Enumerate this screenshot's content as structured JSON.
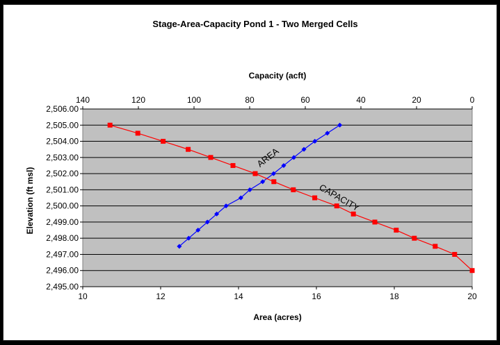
{
  "chart_data": {
    "type": "line",
    "title": "Stage-Area-Capacity Pond 1 - Two Merged Cells",
    "xlabel": "Area (acres)",
    "x2label": "Capacity (acft)",
    "ylabel": "Elevation (ft msl)",
    "xlim": [
      10,
      20
    ],
    "x2lim": [
      140,
      0
    ],
    "ylim": [
      2495,
      2506
    ],
    "xticks": [
      10,
      12,
      14,
      16,
      18,
      20
    ],
    "x2ticks": [
      140,
      120,
      100,
      80,
      60,
      40,
      20,
      0
    ],
    "yticks": [
      "2,495.00",
      "2,496.00",
      "2,497.00",
      "2,498.00",
      "2,499.00",
      "2,500.00",
      "2,501.00",
      "2,502.00",
      "2,503.00",
      "2,504.00",
      "2,505.00",
      "2,506.00"
    ],
    "grid": true,
    "plot_background": "#c0c0c0",
    "series": [
      {
        "name": "AREA",
        "axis": "bottom",
        "color": "#0000ff",
        "marker": "diamond",
        "points": [
          {
            "x": 12.48,
            "y": 2497.5
          },
          {
            "x": 12.72,
            "y": 2498.0
          },
          {
            "x": 12.96,
            "y": 2498.5
          },
          {
            "x": 13.2,
            "y": 2499.0
          },
          {
            "x": 13.44,
            "y": 2499.5
          },
          {
            "x": 13.68,
            "y": 2500.0
          },
          {
            "x": 14.06,
            "y": 2500.5
          },
          {
            "x": 14.29,
            "y": 2501.0
          },
          {
            "x": 14.62,
            "y": 2501.5
          },
          {
            "x": 14.9,
            "y": 2502.0
          },
          {
            "x": 15.16,
            "y": 2502.5
          },
          {
            "x": 15.42,
            "y": 2503.0
          },
          {
            "x": 15.68,
            "y": 2503.5
          },
          {
            "x": 15.96,
            "y": 2504.0
          },
          {
            "x": 16.28,
            "y": 2504.5
          },
          {
            "x": 16.6,
            "y": 2505.0
          }
        ]
      },
      {
        "name": "CAPACITY",
        "axis": "top",
        "color": "#ff0000",
        "marker": "square",
        "points": [
          {
            "x": 130.2,
            "y": 2505.0
          },
          {
            "x": 120.2,
            "y": 2504.5
          },
          {
            "x": 111.1,
            "y": 2504.0
          },
          {
            "x": 102.1,
            "y": 2503.5
          },
          {
            "x": 94.0,
            "y": 2503.0
          },
          {
            "x": 86.0,
            "y": 2502.5
          },
          {
            "x": 78.0,
            "y": 2502.0
          },
          {
            "x": 71.3,
            "y": 2501.5
          },
          {
            "x": 64.3,
            "y": 2501.0
          },
          {
            "x": 56.6,
            "y": 2500.5
          },
          {
            "x": 48.7,
            "y": 2500.0
          },
          {
            "x": 42.7,
            "y": 2499.5
          },
          {
            "x": 35.0,
            "y": 2499.0
          },
          {
            "x": 27.3,
            "y": 2498.5
          },
          {
            "x": 20.8,
            "y": 2498.0
          },
          {
            "x": 13.3,
            "y": 2497.5
          },
          {
            "x": 6.3,
            "y": 2497.0
          },
          {
            "x": 0,
            "y": 2496.0
          }
        ]
      }
    ],
    "annotations": [
      {
        "text": "AREA",
        "x": 14.8,
        "y": 2502.85,
        "axis": "bottom",
        "angle": -38
      },
      {
        "text": "CAPACITY",
        "x": 16.55,
        "y": 2500.35,
        "axis": "bottom",
        "angle": 30
      }
    ]
  }
}
